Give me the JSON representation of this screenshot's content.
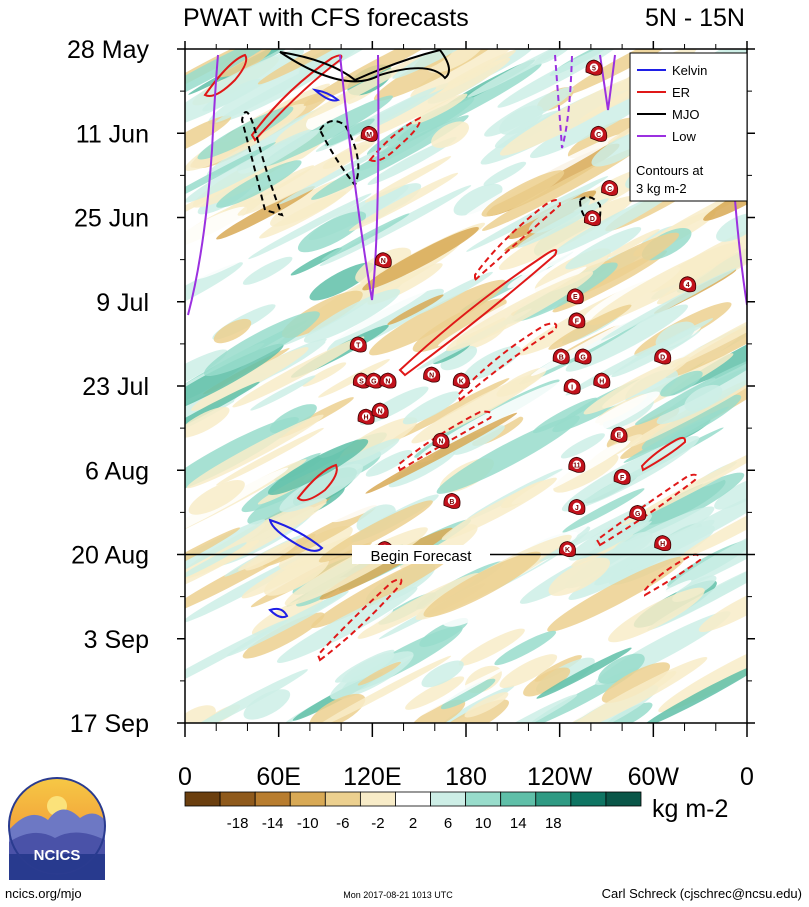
{
  "chart_data": {
    "type": "heatmap",
    "title": "PWAT with CFS forecasts",
    "subtitle": "5N - 15N",
    "y_ticks": [
      "28 May",
      "11 Jun",
      "25 Jun",
      "9 Jul",
      "23 Jul",
      "6 Aug",
      "20 Aug",
      "3 Sep",
      "17 Sep"
    ],
    "x_ticks": [
      "0",
      "60E",
      "120E",
      "180",
      "120W",
      "60W",
      "0"
    ],
    "x_range": [
      0,
      360
    ],
    "y_range_days": [
      0,
      112
    ],
    "forecast_label": "Begin Forecast",
    "forecast_start_day": 84,
    "legend": {
      "items": [
        {
          "name": "Kelvin",
          "color": "#1f1fe6"
        },
        {
          "name": "ER",
          "color": "#e01818"
        },
        {
          "name": "MJO",
          "color": "#000000"
        },
        {
          "name": "Low",
          "color": "#9b30e0"
        }
      ],
      "note_line1": "Contours at",
      "note_line2": "3 kg m-2"
    },
    "colorbar": {
      "unit": "kg m-2",
      "labels": [
        "-18",
        "-14",
        "-10",
        "-6",
        "-2",
        "2",
        "6",
        "10",
        "14",
        "18"
      ],
      "colors": [
        "#6b3f0f",
        "#8f5a1c",
        "#b87d2f",
        "#d8a955",
        "#ecd08f",
        "#f8ecc8",
        "#ffffff",
        "#cdeee6",
        "#98dccb",
        "#5fbfa8",
        "#2f9a83",
        "#0f7563",
        "#0a5648"
      ]
    },
    "storms": [
      {
        "label": "5",
        "lon": 262,
        "day": 3
      },
      {
        "label": "M",
        "lon": 118,
        "day": 14
      },
      {
        "label": "C",
        "lon": 265,
        "day": 14
      },
      {
        "label": "C",
        "lon": 272,
        "day": 23
      },
      {
        "label": "D",
        "lon": 261,
        "day": 28
      },
      {
        "label": "N",
        "lon": 127,
        "day": 35
      },
      {
        "label": "4",
        "lon": 322,
        "day": 39
      },
      {
        "label": "E",
        "lon": 250,
        "day": 41
      },
      {
        "label": "F",
        "lon": 251,
        "day": 45
      },
      {
        "label": "T",
        "lon": 111,
        "day": 49
      },
      {
        "label": "B",
        "lon": 241,
        "day": 51
      },
      {
        "label": "G",
        "lon": 255,
        "day": 51
      },
      {
        "label": "D",
        "lon": 306,
        "day": 51
      },
      {
        "label": "S",
        "lon": 113,
        "day": 55
      },
      {
        "label": "G",
        "lon": 121,
        "day": 55
      },
      {
        "label": "N",
        "lon": 130,
        "day": 55
      },
      {
        "label": "N",
        "lon": 158,
        "day": 54
      },
      {
        "label": "K",
        "lon": 177,
        "day": 55
      },
      {
        "label": "I",
        "lon": 248,
        "day": 56
      },
      {
        "label": "H",
        "lon": 267,
        "day": 55
      },
      {
        "label": "H",
        "lon": 116,
        "day": 61
      },
      {
        "label": "N",
        "lon": 125,
        "day": 60
      },
      {
        "label": "E",
        "lon": 278,
        "day": 64
      },
      {
        "label": "N",
        "lon": 164,
        "day": 65
      },
      {
        "label": "11",
        "lon": 251,
        "day": 69
      },
      {
        "label": "F",
        "lon": 280,
        "day": 71
      },
      {
        "label": "B",
        "lon": 171,
        "day": 75
      },
      {
        "label": "J",
        "lon": 251,
        "day": 76
      },
      {
        "label": "G",
        "lon": 290,
        "day": 77
      },
      {
        "label": "H",
        "lon": 306,
        "day": 82
      },
      {
        "label": "K",
        "lon": 245,
        "day": 83
      },
      {
        "label": "N",
        "lon": 128,
        "day": 83
      }
    ]
  },
  "footer": {
    "logo_text": "NCICS",
    "url": "ncics.org/mjo",
    "timestamp": "Mon 2017-08-21 1013 UTC",
    "author": "Carl Schreck (cjschrec@ncsu.edu)"
  }
}
